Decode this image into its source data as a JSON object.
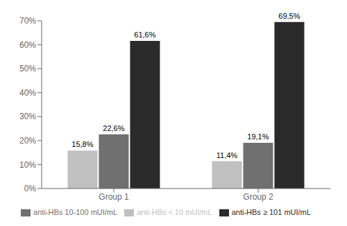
{
  "chart_data": {
    "type": "bar",
    "categories": [
      "Group 1",
      "Group 2"
    ],
    "series": [
      {
        "name": "anti-HBs < 10 mUI/mL",
        "color": "#c0c0c0",
        "values": [
          15.8,
          11.4
        ],
        "value_labels": [
          "15,8%",
          "11,4%"
        ]
      },
      {
        "name": "anti-HBs 10-100 mUI/mL",
        "color": "#707070",
        "values": [
          22.6,
          19.1
        ],
        "value_labels": [
          "22,6%",
          "19,1%"
        ]
      },
      {
        "name": "anti-HBs ≥ 101 mUI/mL",
        "color": "#2a2a2a",
        "values": [
          61.6,
          69.5
        ],
        "value_labels": [
          "61,6%",
          "69,5%"
        ]
      }
    ],
    "ylim": [
      0,
      70
    ],
    "yticks": [
      {
        "value": 0,
        "label": "0%"
      },
      {
        "value": 10,
        "label": "10%"
      },
      {
        "value": 20,
        "label": "20%"
      },
      {
        "value": 30,
        "label": "30%"
      },
      {
        "value": 40,
        "label": "40%"
      },
      {
        "value": 50,
        "label": "50%"
      },
      {
        "value": 60,
        "label": "60%"
      },
      {
        "value": 70,
        "label": "70%"
      }
    ],
    "grid": false,
    "legend": "bottom",
    "data_labels": true
  }
}
